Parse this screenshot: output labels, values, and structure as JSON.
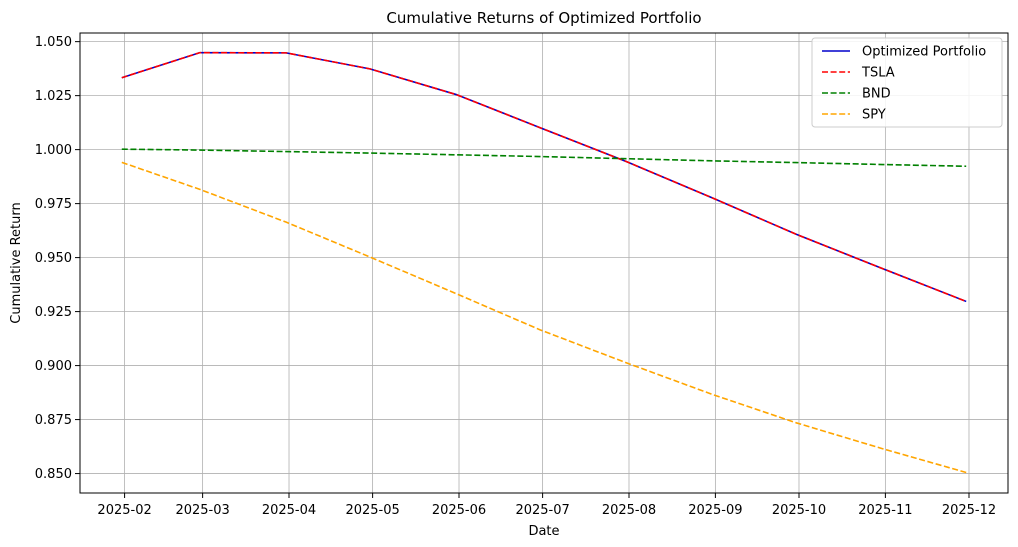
{
  "chart_data": {
    "type": "line",
    "title": "Cumulative Returns of Optimized Portfolio",
    "xlabel": "Date",
    "ylabel": "Cumulative Return",
    "x": [
      "2025-01-31",
      "2025-02-28",
      "2025-03-31",
      "2025-04-30",
      "2025-05-31",
      "2025-06-30",
      "2025-07-31",
      "2025-08-31",
      "2025-09-30",
      "2025-10-31",
      "2025-11-30"
    ],
    "x_ticks": [
      "2025-02",
      "2025-03",
      "2025-04",
      "2025-05",
      "2025-06",
      "2025-07",
      "2025-08",
      "2025-09",
      "2025-10",
      "2025-11",
      "2025-12"
    ],
    "y_ticks": [
      "0.850",
      "0.875",
      "0.900",
      "0.925",
      "0.950",
      "0.975",
      "1.000",
      "1.025",
      "1.050"
    ],
    "ylim": [
      0.841,
      1.054
    ],
    "xlim": [
      "2025-01-16",
      "2025-12-15"
    ],
    "grid": true,
    "legend_position": "top-right",
    "series": [
      {
        "name": "Optimized Portfolio",
        "color": "#0000cc",
        "style": "solid",
        "values": [
          1.0333,
          1.0449,
          1.0448,
          1.0374,
          1.0255,
          1.0102,
          0.9945,
          0.9776,
          0.9608,
          0.9449,
          0.9297
        ]
      },
      {
        "name": "TSLA",
        "color": "#ff0000",
        "style": "dashed",
        "values": [
          1.0333,
          1.0449,
          1.0448,
          1.0374,
          1.0255,
          1.0102,
          0.9945,
          0.9776,
          0.9608,
          0.9449,
          0.9297
        ]
      },
      {
        "name": "BND",
        "color": "#008000",
        "style": "dashed",
        "values": [
          1.0002,
          0.9998,
          0.9991,
          0.9984,
          0.9976,
          0.9968,
          0.9958,
          0.9948,
          0.994,
          0.9931,
          0.9923
        ]
      },
      {
        "name": "SPY",
        "color": "#ffa500",
        "style": "dashed",
        "values": [
          0.9941,
          0.9816,
          0.9664,
          0.9503,
          0.9333,
          0.9166,
          0.9013,
          0.8866,
          0.8735,
          0.8615,
          0.8505
        ]
      }
    ]
  }
}
